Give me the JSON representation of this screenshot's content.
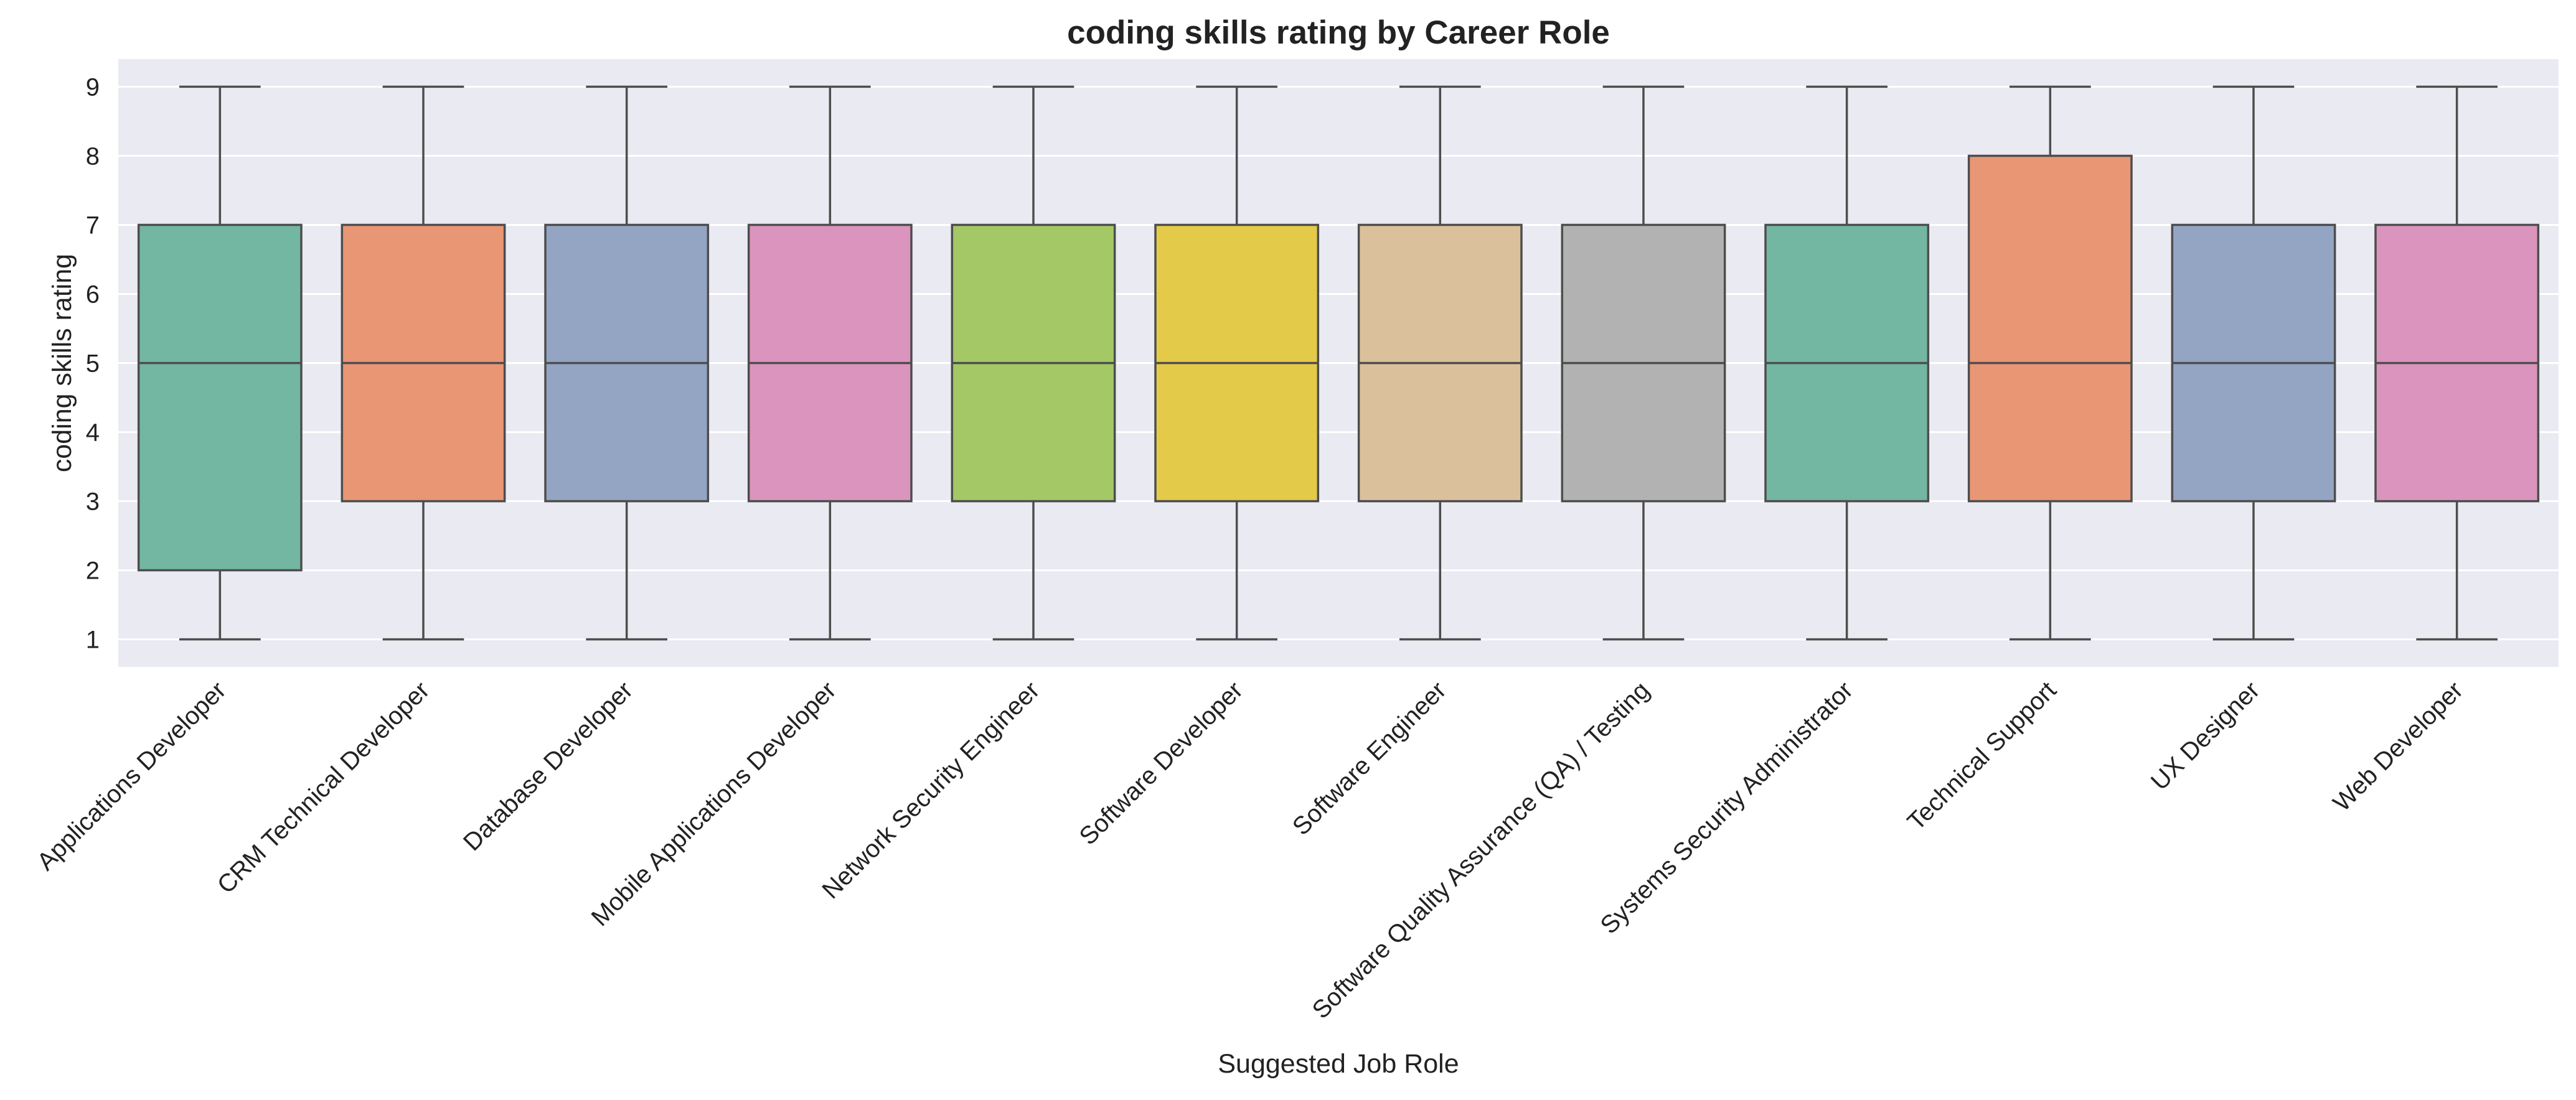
{
  "chart_data": {
    "type": "box",
    "title": "coding skills rating by Career Role",
    "xlabel": "Suggested Job Role",
    "ylabel": "coding skills rating",
    "ylim": [
      0.6,
      9.4
    ],
    "yticks": [
      1,
      2,
      3,
      4,
      5,
      6,
      7,
      8,
      9
    ],
    "grid": true,
    "legend": "none",
    "categories": [
      "Applications Developer",
      "CRM Technical Developer",
      "Database Developer",
      "Mobile Applications Developer",
      "Network Security Engineer",
      "Software Developer",
      "Software Engineer",
      "Software Quality Assurance (QA) / Testing",
      "Systems Security Administrator",
      "Technical Support",
      "UX Designer",
      "Web Developer"
    ],
    "boxes": [
      {
        "min": 1,
        "q1": 2,
        "median": 5,
        "q3": 7,
        "max": 9,
        "color": "#73b6a1"
      },
      {
        "min": 1,
        "q1": 3,
        "median": 5,
        "q3": 7,
        "max": 9,
        "color": "#e99675"
      },
      {
        "min": 1,
        "q1": 3,
        "median": 5,
        "q3": 7,
        "max": 9,
        "color": "#94a4c3"
      },
      {
        "min": 1,
        "q1": 3,
        "median": 5,
        "q3": 7,
        "max": 9,
        "color": "#db94bd"
      },
      {
        "min": 1,
        "q1": 3,
        "median": 5,
        "q3": 7,
        "max": 9,
        "color": "#a3c865"
      },
      {
        "min": 1,
        "q1": 3,
        "median": 5,
        "q3": 7,
        "max": 9,
        "color": "#e4ca49"
      },
      {
        "min": 1,
        "q1": 3,
        "median": 5,
        "q3": 7,
        "max": 9,
        "color": "#dbc19b"
      },
      {
        "min": 1,
        "q1": 3,
        "median": 5,
        "q3": 7,
        "max": 9,
        "color": "#b2b2b2"
      },
      {
        "min": 1,
        "q1": 3,
        "median": 5,
        "q3": 7,
        "max": 9,
        "color": "#73b6a1"
      },
      {
        "min": 1,
        "q1": 3,
        "median": 5,
        "q3": 8,
        "max": 9,
        "color": "#e99675"
      },
      {
        "min": 1,
        "q1": 3,
        "median": 5,
        "q3": 7,
        "max": 9,
        "color": "#94a4c3"
      },
      {
        "min": 1,
        "q1": 3,
        "median": 5,
        "q3": 7,
        "max": 9,
        "color": "#db94bd"
      }
    ],
    "colors": {
      "plot_background": "#eaeaf2",
      "grid": "#ffffff",
      "box_edge": "#4d4d4d"
    }
  }
}
